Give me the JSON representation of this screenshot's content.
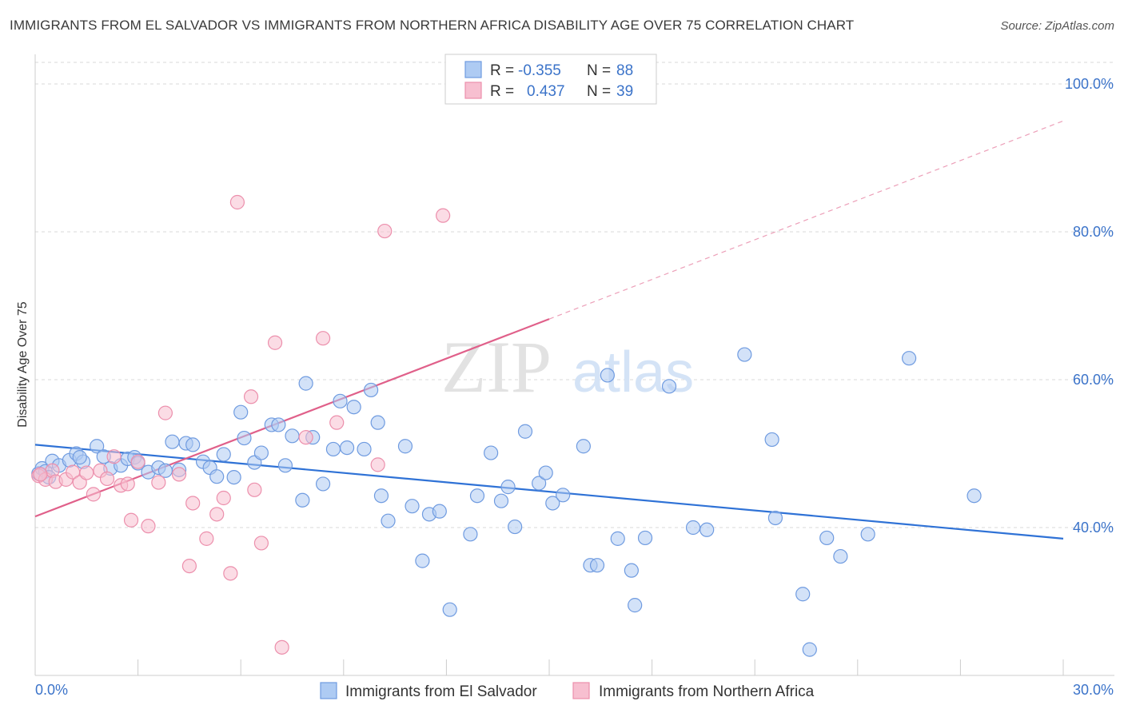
{
  "header": {
    "title": "IMMIGRANTS FROM EL SALVADOR VS IMMIGRANTS FROM NORTHERN AFRICA DISABILITY AGE OVER 75 CORRELATION CHART",
    "source": "Source: ZipAtlas.com"
  },
  "watermark": {
    "zip": "ZIP",
    "atlas": "atlas"
  },
  "colors": {
    "blue_fill": "#aecbf3",
    "blue_stroke": "#6f9be0",
    "blue_line": "#2f72d6",
    "pink_fill": "#f7bfd0",
    "pink_stroke": "#ec8fac",
    "pink_line": "#e0608a",
    "axis_text": "#3b73c9",
    "grid": "#d9d9d9"
  },
  "legend": {
    "series1": {
      "r_label": "R =",
      "r_value": "-0.355",
      "n_label": "N =",
      "n_value": "88"
    },
    "series2": {
      "r_label": "R =",
      "r_value": "0.437",
      "n_label": "N =",
      "n_value": "39"
    }
  },
  "chart_data": {
    "type": "scatter",
    "title": "IMMIGRANTS FROM EL SALVADOR VS IMMIGRANTS FROM NORTHERN AFRICA DISABILITY AGE OVER 75 CORRELATION CHART",
    "xlabel": "",
    "ylabel": "Disability Age Over 75",
    "xlim": [
      0,
      30
    ],
    "ylim": [
      20,
      104
    ],
    "x_ticks": [
      {
        "value": 0,
        "label": "0.0%"
      },
      {
        "value": 30,
        "label": "30.0%"
      }
    ],
    "y_ticks": [
      {
        "value": 100,
        "label": "100.0%"
      },
      {
        "value": 80,
        "label": "80.0%"
      },
      {
        "value": 60,
        "label": "60.0%"
      },
      {
        "value": 40,
        "label": "40.0%"
      }
    ],
    "grid": true,
    "legend_position": "top-center",
    "series": [
      {
        "name": "Immigrants from El Salvador",
        "color": "#aecbf3",
        "r": -0.355,
        "n": 88,
        "trend": {
          "x0": 0,
          "y0": 51.2,
          "x1": 30,
          "y1": 38.5
        },
        "points": [
          [
            0.1,
            47.3
          ],
          [
            0.2,
            48.0
          ],
          [
            0.3,
            47.6
          ],
          [
            0.4,
            46.8
          ],
          [
            0.5,
            49.0
          ],
          [
            0.7,
            48.4
          ],
          [
            1.0,
            49.1
          ],
          [
            1.2,
            50.0
          ],
          [
            1.4,
            48.9
          ],
          [
            1.8,
            51.0
          ],
          [
            2.0,
            49.6
          ],
          [
            2.2,
            48.0
          ],
          [
            2.5,
            48.4
          ],
          [
            2.7,
            49.3
          ],
          [
            2.9,
            49.5
          ],
          [
            3.0,
            48.7
          ],
          [
            3.3,
            47.5
          ],
          [
            3.6,
            48.1
          ],
          [
            3.8,
            47.7
          ],
          [
            4.0,
            51.6
          ],
          [
            4.2,
            47.8
          ],
          [
            4.4,
            51.4
          ],
          [
            4.6,
            51.2
          ],
          [
            4.9,
            48.9
          ],
          [
            5.1,
            48.1
          ],
          [
            5.3,
            46.9
          ],
          [
            5.5,
            49.9
          ],
          [
            5.8,
            46.8
          ],
          [
            6.0,
            55.6
          ],
          [
            6.1,
            52.1
          ],
          [
            6.4,
            48.8
          ],
          [
            6.6,
            50.1
          ],
          [
            6.9,
            53.9
          ],
          [
            7.1,
            53.9
          ],
          [
            7.3,
            48.4
          ],
          [
            7.5,
            52.4
          ],
          [
            7.8,
            43.7
          ],
          [
            7.9,
            59.5
          ],
          [
            8.1,
            52.2
          ],
          [
            8.4,
            45.9
          ],
          [
            8.7,
            50.6
          ],
          [
            8.9,
            57.1
          ],
          [
            9.1,
            50.8
          ],
          [
            9.3,
            56.3
          ],
          [
            9.6,
            50.6
          ],
          [
            9.8,
            58.6
          ],
          [
            10.0,
            54.2
          ],
          [
            10.1,
            44.3
          ],
          [
            10.3,
            40.9
          ],
          [
            10.8,
            51.0
          ],
          [
            11.0,
            42.9
          ],
          [
            11.3,
            35.5
          ],
          [
            11.5,
            41.8
          ],
          [
            11.8,
            42.2
          ],
          [
            12.1,
            28.9
          ],
          [
            12.7,
            39.1
          ],
          [
            12.9,
            44.3
          ],
          [
            13.3,
            50.1
          ],
          [
            13.6,
            43.6
          ],
          [
            13.8,
            45.5
          ],
          [
            14.0,
            40.1
          ],
          [
            14.3,
            53.0
          ],
          [
            14.7,
            46.0
          ],
          [
            14.9,
            47.4
          ],
          [
            15.1,
            43.3
          ],
          [
            15.4,
            44.4
          ],
          [
            16.0,
            51.0
          ],
          [
            16.2,
            34.9
          ],
          [
            16.4,
            34.9
          ],
          [
            16.7,
            60.6
          ],
          [
            17.0,
            38.5
          ],
          [
            17.4,
            34.2
          ],
          [
            17.5,
            29.5
          ],
          [
            17.8,
            38.6
          ],
          [
            18.5,
            59.1
          ],
          [
            19.2,
            40.0
          ],
          [
            19.6,
            39.7
          ],
          [
            20.7,
            63.4
          ],
          [
            21.5,
            51.9
          ],
          [
            21.6,
            41.3
          ],
          [
            22.4,
            31.0
          ],
          [
            22.6,
            23.5
          ],
          [
            23.1,
            38.6
          ],
          [
            23.5,
            36.1
          ],
          [
            24.3,
            39.1
          ],
          [
            25.5,
            62.9
          ],
          [
            27.4,
            44.3
          ],
          [
            1.3,
            49.5
          ]
        ]
      },
      {
        "name": "Immigrants from Northern Africa",
        "color": "#f7bfd0",
        "r": 0.437,
        "n": 39,
        "trend": {
          "x0": 0,
          "y0": 41.5,
          "x1": 15,
          "y1": 68.2
        },
        "trend_dashed_to": {
          "x": 30,
          "y": 95.0
        },
        "points": [
          [
            0.1,
            47.0
          ],
          [
            0.3,
            46.5
          ],
          [
            0.5,
            47.7
          ],
          [
            0.6,
            46.2
          ],
          [
            0.9,
            46.5
          ],
          [
            1.1,
            47.5
          ],
          [
            1.3,
            46.1
          ],
          [
            1.5,
            47.4
          ],
          [
            1.7,
            44.5
          ],
          [
            1.9,
            47.7
          ],
          [
            2.1,
            46.6
          ],
          [
            2.3,
            49.6
          ],
          [
            2.5,
            45.7
          ],
          [
            2.7,
            45.9
          ],
          [
            2.8,
            41.0
          ],
          [
            3.0,
            48.9
          ],
          [
            3.3,
            40.2
          ],
          [
            3.6,
            46.1
          ],
          [
            3.8,
            55.5
          ],
          [
            4.2,
            47.2
          ],
          [
            4.5,
            34.8
          ],
          [
            4.6,
            43.3
          ],
          [
            5.0,
            38.5
          ],
          [
            5.3,
            41.8
          ],
          [
            5.5,
            44.0
          ],
          [
            5.7,
            33.8
          ],
          [
            5.9,
            84.0
          ],
          [
            6.3,
            57.7
          ],
          [
            6.4,
            45.1
          ],
          [
            6.6,
            37.9
          ],
          [
            7.0,
            65.0
          ],
          [
            7.2,
            23.8
          ],
          [
            7.9,
            52.2
          ],
          [
            8.4,
            65.6
          ],
          [
            8.8,
            54.2
          ],
          [
            10.0,
            48.5
          ],
          [
            10.2,
            80.1
          ],
          [
            11.9,
            82.2
          ],
          [
            0.15,
            47.2
          ]
        ]
      }
    ]
  },
  "bottom_legend": {
    "item1": "Immigrants from El Salvador",
    "item2": "Immigrants from Northern Africa"
  }
}
